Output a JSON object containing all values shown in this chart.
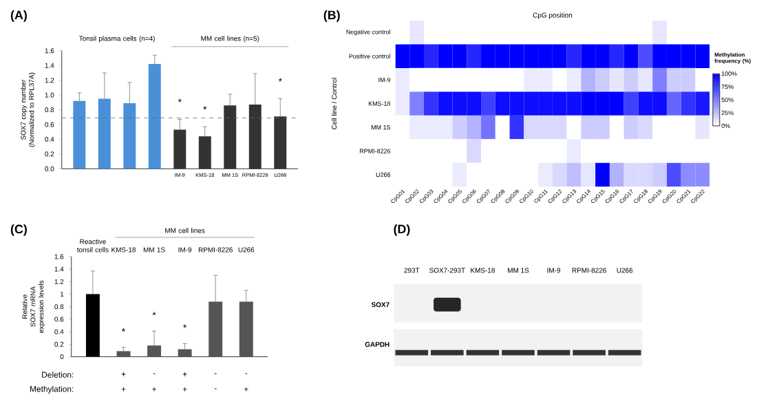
{
  "chart_data": [
    {
      "type": "bar",
      "title": "(A)",
      "ylabel": "SOX7 copy number (Normalized to RPL37A)",
      "categories": [
        null,
        null,
        null,
        null,
        "IM-9",
        "KMS-18",
        "MM 1S",
        "RPMI-8226",
        "U266"
      ],
      "values": [
        0.92,
        0.95,
        0.89,
        1.42,
        0.53,
        0.44,
        0.86,
        0.87,
        0.71
      ],
      "colors": [
        "#4a90d9",
        "#4a90d9",
        "#4a90d9",
        "#4a90d9",
        "#333333",
        "#333333",
        "#333333",
        "#333333",
        "#333333"
      ],
      "errors": [
        [
          0.92,
          1.03
        ],
        [
          0.95,
          1.3
        ],
        [
          0.89,
          1.17
        ],
        [
          1.42,
          1.54
        ],
        [
          0.53,
          0.67
        ],
        [
          0.44,
          0.57
        ],
        [
          0.86,
          1.01
        ],
        [
          0.87,
          1.29
        ],
        [
          0.71,
          0.95
        ]
      ],
      "ylim": [
        0,
        1.6
      ],
      "yticks": [
        {
          "value": 0,
          "label": "0.0"
        },
        0.2,
        0.4,
        0.6,
        0.8,
        {
          "value": 1,
          "label": "1.0"
        },
        1.2,
        1.4,
        1.6
      ],
      "ref_lines": [
        {
          "axis": "y",
          "value": 0.69,
          "color": "#666666",
          "line_style": "dashed"
        }
      ],
      "annotations": [
        "Tonsil plasma cells (n=4)",
        "MM cell lines (n=5)",
        "*",
        "*",
        "*"
      ]
    },
    {
      "type": "heatmap",
      "title": "(B)",
      "xlabel": "CpG position",
      "ylabel": "Cell line / Control",
      "clabel": "Methylation frequency (%)",
      "categories": [
        "CpG01",
        "CpG02",
        "CpG03",
        "CpG04",
        "CpG05",
        "CpG06",
        "CpG07",
        "CpG08",
        "CpG09",
        "CpG10",
        "CpG11",
        "CpG12",
        "CpG13",
        "CpG14",
        "CpG15",
        "CpG16",
        "CpG17",
        "CpG18",
        "CpG19",
        "CpG20",
        "CpG21",
        "CpG22"
      ],
      "y_categories": [
        "Negative control",
        "Positive control",
        "IM-9",
        "KMS-18",
        "MM 1S",
        "RPMI-8226",
        "U266"
      ],
      "cells": [
        [
          0,
          10,
          0,
          0,
          0,
          0,
          0,
          0,
          0,
          0,
          0,
          0,
          0,
          0,
          0,
          0,
          0,
          0,
          10,
          0,
          0,
          0
        ],
        [
          100,
          100,
          85,
          100,
          100,
          85,
          100,
          100,
          100,
          100,
          100,
          100,
          85,
          100,
          100,
          85,
          100,
          70,
          100,
          100,
          100,
          100
        ],
        [
          8,
          0,
          0,
          0,
          0,
          0,
          0,
          0,
          0,
          8,
          8,
          0,
          8,
          30,
          20,
          10,
          20,
          10,
          50,
          20,
          20,
          0
        ],
        [
          8,
          50,
          80,
          95,
          95,
          95,
          75,
          95,
          95,
          95,
          95,
          95,
          95,
          100,
          100,
          100,
          75,
          95,
          95,
          60,
          80,
          90
        ],
        [
          0,
          8,
          8,
          8,
          20,
          30,
          55,
          0,
          80,
          15,
          15,
          15,
          0,
          20,
          20,
          0,
          20,
          15,
          0,
          0,
          0,
          10
        ],
        [
          0,
          0,
          0,
          0,
          0,
          15,
          0,
          0,
          0,
          0,
          0,
          0,
          8,
          0,
          0,
          0,
          0,
          0,
          0,
          0,
          0,
          0
        ],
        [
          0,
          0,
          0,
          0,
          8,
          0,
          0,
          0,
          0,
          0,
          8,
          15,
          25,
          10,
          100,
          30,
          15,
          15,
          20,
          70,
          45,
          45
        ]
      ],
      "clim": [
        0,
        100
      ],
      "cticks": [
        {
          "value": 0,
          "label": "0%"
        },
        {
          "value": 25,
          "label": "25%"
        },
        {
          "value": 50,
          "label": "50%"
        },
        {
          "value": 75,
          "label": "75%"
        },
        {
          "value": 100,
          "label": "100%"
        }
      ]
    },
    {
      "type": "bar",
      "title": "(C)",
      "ylabel": "Relative SOX7 mRNA expression levels",
      "categories": [
        "Reactive tonsil cells",
        "KMS-18",
        "MM 1S",
        "IM-9",
        "RPMI-8226",
        "U266"
      ],
      "values": [
        1.0,
        0.09,
        0.18,
        0.12,
        0.88,
        0.88
      ],
      "colors": [
        "#000000",
        "#555555",
        "#555555",
        "#555555",
        "#555555",
        "#555555"
      ],
      "errors": [
        [
          1.0,
          1.37
        ],
        [
          0.09,
          0.15
        ],
        [
          0.18,
          0.41
        ],
        [
          0.12,
          0.21
        ],
        [
          0.88,
          1.3
        ],
        [
          0.88,
          1.06
        ]
      ],
      "ylim": [
        0,
        1.6
      ],
      "yticks": [
        0,
        0.2,
        0.4,
        0.6,
        0.8,
        1,
        1.2,
        1.4,
        1.6
      ],
      "annotations": [
        "MM cell lines",
        "*",
        "*",
        "*",
        "Deletion:",
        "+",
        "-",
        "+",
        "-",
        "-",
        "Methylation:",
        "+",
        "+",
        "+",
        "-",
        "+"
      ]
    },
    {
      "type": "other",
      "title": "(D)",
      "categories": [
        "293T",
        "SOX7-293T",
        "KMS-18",
        "MM 1S",
        "IM-9",
        "RPMI-8226",
        "U266"
      ],
      "annotations": [
        "SOX7",
        "GAPDH"
      ]
    }
  ]
}
